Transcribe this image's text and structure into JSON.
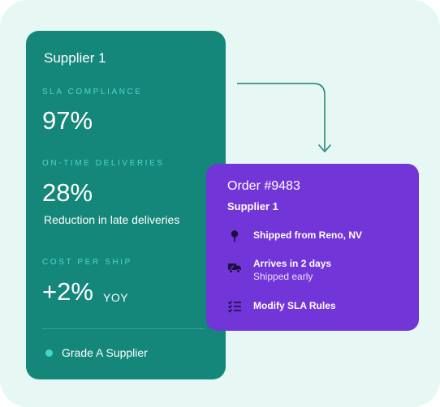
{
  "colors": {
    "backdrop": "#e7f8f4",
    "supplier_card": "#14877a",
    "metric_label": "#4fd6c6",
    "order_card": "#7235d8",
    "connector": "#1a7f73"
  },
  "supplier_card": {
    "title": "Supplier 1",
    "sla": {
      "label": "SLA COMPLIANCE",
      "value": "97%"
    },
    "ontime": {
      "label": "ON-TIME DELIVERIES",
      "value": "28%",
      "sub": "Reduction in late deliveries"
    },
    "cost": {
      "label": "COST PER SHIP",
      "value": "+2%",
      "suffix": "YOY"
    },
    "grade": "Grade A Supplier"
  },
  "order_card": {
    "title": "Order #9483",
    "supplier": "Supplier 1",
    "rows": [
      {
        "icon": "location-pin-icon",
        "title": "Shipped from Reno, NV"
      },
      {
        "icon": "truck-icon",
        "title": "Arrives in 2 days",
        "sub": "Shipped early"
      },
      {
        "icon": "checklist-icon",
        "title": "Modify SLA Rules"
      }
    ]
  }
}
